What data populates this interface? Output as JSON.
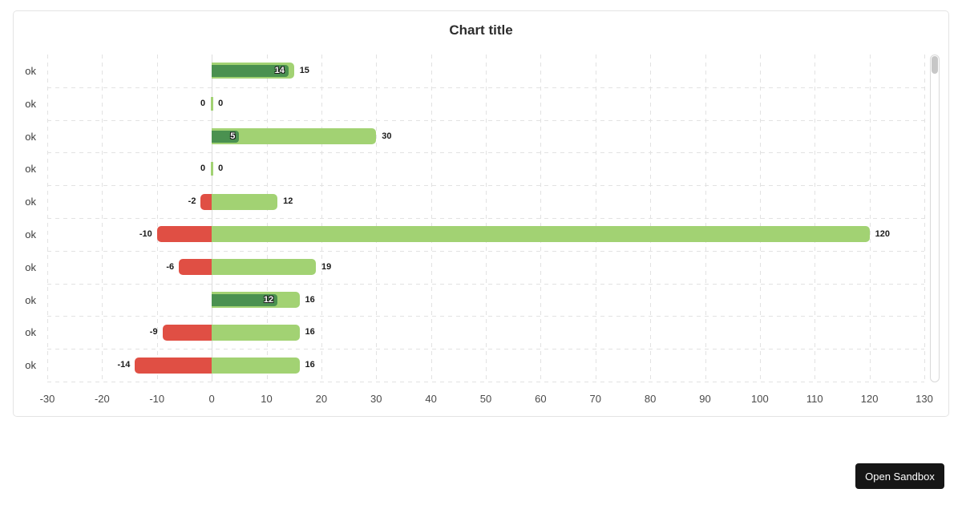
{
  "chart_data": {
    "type": "bar",
    "orientation": "horizontal",
    "title": "Chart title",
    "categories": [
      "ok",
      "ok",
      "ok",
      "ok",
      "ok",
      "ok",
      "ok",
      "ok",
      "ok",
      "ok"
    ],
    "series": [
      {
        "name": "negative",
        "color": "#e04f44",
        "values": [
          null,
          0,
          null,
          0,
          -2,
          -10,
          -6,
          null,
          -9,
          -14
        ]
      },
      {
        "name": "positive-outer",
        "color": "#a2d273",
        "values": [
          15,
          0,
          30,
          0,
          12,
          120,
          19,
          16,
          16,
          16
        ]
      },
      {
        "name": "positive-inner",
        "color": "#4a9150",
        "values": [
          14,
          null,
          5,
          null,
          null,
          null,
          null,
          12,
          null,
          null
        ]
      }
    ],
    "x_ticks": [
      -30,
      -20,
      -10,
      0,
      10,
      20,
      30,
      40,
      50,
      60,
      70,
      80,
      90,
      100,
      110,
      120,
      130
    ],
    "xlim": [
      -30,
      130
    ],
    "grid": "dashed",
    "legend": "none",
    "value_labels": {
      "outside_color": "#1b1b1b",
      "inside_color": "#ffffff"
    }
  },
  "scrollbar": {
    "visible": true,
    "thumb_position": "top"
  },
  "sandbox_button": {
    "label": "Open Sandbox"
  }
}
